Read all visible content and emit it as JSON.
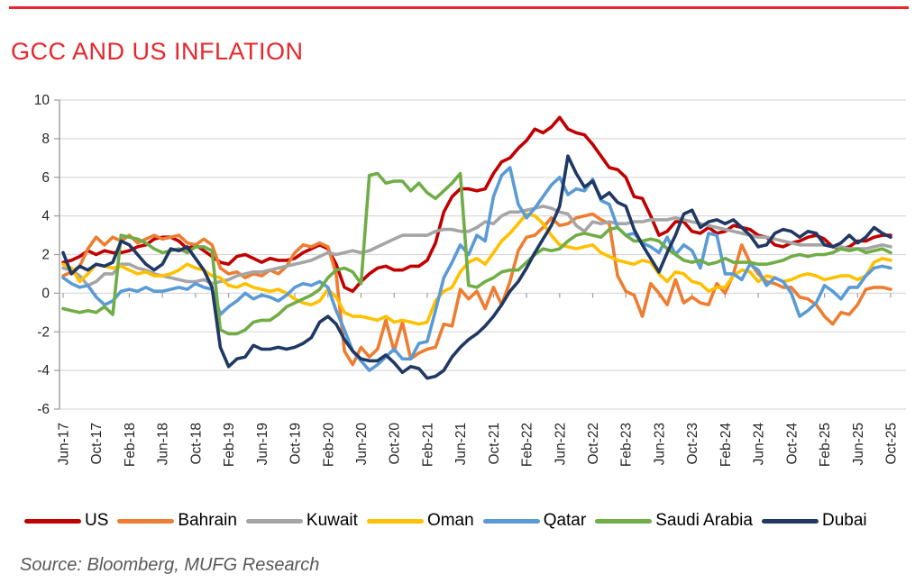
{
  "page": {
    "title": "GCC AND US INFLATION",
    "source": "Source: Bloomberg, MUFG Research",
    "accent_color": "#e8262d",
    "title_color": "#e8262d"
  },
  "chart_data": {
    "type": "line",
    "title": "GCC AND US INFLATION",
    "xlabel": "",
    "ylabel": "",
    "ylim": [
      -6,
      10
    ],
    "y_ticks": [
      10,
      8,
      6,
      4,
      2,
      0,
      -2,
      -4,
      -6
    ],
    "grid": true,
    "legend_position": "bottom",
    "x_frequency": "monthly",
    "x_start": "Jun-17",
    "x_end": "Oct-25",
    "x_tick_every": 4,
    "x_tick_labels": [
      "Jun-17",
      "Oct-17",
      "Feb-18",
      "Jun-18",
      "Oct-18",
      "Feb-19",
      "Jun-19",
      "Oct-19",
      "Feb-20",
      "Jun-20",
      "Oct-20",
      "Feb-21",
      "Jun-21",
      "Oct-21",
      "Feb-22",
      "Jun-22",
      "Oct-22",
      "Feb-23",
      "Jun-23",
      "Oct-23",
      "Feb-24",
      "Jun-24",
      "Oct-24",
      "Feb-25",
      "Jun-25",
      "Oct-25"
    ],
    "series": [
      {
        "name": "US",
        "color": "#c00000",
        "values": [
          1.6,
          1.7,
          1.9,
          2.2,
          2.0,
          2.2,
          2.1,
          2.1,
          2.2,
          2.4,
          2.5,
          2.8,
          2.9,
          2.9,
          2.7,
          2.3,
          2.5,
          2.2,
          1.9,
          1.6,
          1.5,
          1.9,
          2.0,
          1.8,
          1.6,
          1.8,
          1.7,
          1.7,
          1.8,
          2.1,
          2.3,
          2.5,
          2.3,
          1.5,
          0.3,
          0.1,
          0.6,
          1.0,
          1.3,
          1.4,
          1.2,
          1.2,
          1.4,
          1.4,
          1.7,
          2.6,
          4.2,
          5.0,
          5.4,
          5.4,
          5.3,
          5.4,
          6.2,
          6.8,
          7.0,
          7.5,
          7.9,
          8.5,
          8.3,
          8.6,
          9.1,
          8.5,
          8.3,
          8.2,
          7.7,
          7.1,
          6.5,
          6.4,
          6.0,
          5.0,
          4.9,
          4.0,
          3.0,
          3.2,
          3.7,
          3.7,
          3.2,
          3.1,
          3.4,
          3.1,
          3.2,
          3.5,
          3.4,
          3.3,
          3.0,
          2.9,
          2.5,
          2.4,
          2.6,
          2.7,
          2.9,
          3.0,
          2.8,
          2.4,
          2.3,
          2.4,
          2.7,
          2.7,
          2.9,
          3.0,
          3.0
        ]
      },
      {
        "name": "Bahrain",
        "color": "#ed7d31",
        "values": [
          0.9,
          1.1,
          1.4,
          2.3,
          2.9,
          2.5,
          2.9,
          2.7,
          3.0,
          2.6,
          2.8,
          3.0,
          2.8,
          2.9,
          3.0,
          2.6,
          2.5,
          2.8,
          2.5,
          1.3,
          1.0,
          1.1,
          0.8,
          1.0,
          0.9,
          1.2,
          1.0,
          1.4,
          2.1,
          2.5,
          2.4,
          2.6,
          2.4,
          1.0,
          -3.0,
          -3.7,
          -2.8,
          -3.3,
          -2.9,
          -1.4,
          -3.0,
          -1.5,
          -3.4,
          -3.1,
          -2.9,
          -2.8,
          -1.6,
          -1.7,
          0.2,
          -0.3,
          0.1,
          -0.8,
          0.3,
          -0.6,
          0.6,
          2.2,
          2.9,
          3.0,
          3.4,
          3.9,
          3.5,
          3.6,
          3.9,
          4.0,
          4.1,
          3.8,
          3.6,
          0.9,
          0.1,
          -0.1,
          -1.2,
          0.5,
          0.0,
          -0.6,
          0.7,
          -0.5,
          -0.2,
          -0.5,
          -0.6,
          0.5,
          0.0,
          1.0,
          2.5,
          1.6,
          1.0,
          0.6,
          0.5,
          0.3,
          0.3,
          -0.2,
          -0.3,
          -0.6,
          -1.2,
          -1.6,
          -1.0,
          -1.1,
          -0.6,
          0.2,
          0.3,
          0.3,
          0.2
        ]
      },
      {
        "name": "Kuwait",
        "color": "#a5a5a5",
        "values": [
          1.3,
          1.2,
          0.9,
          0.4,
          0.6,
          1.0,
          1.0,
          1.5,
          1.5,
          1.3,
          1.2,
          1.0,
          0.9,
          0.8,
          0.7,
          0.6,
          0.6,
          0.7,
          0.5,
          0.6,
          0.7,
          0.9,
          1.0,
          1.1,
          1.1,
          1.2,
          1.3,
          1.4,
          1.5,
          1.6,
          1.7,
          1.9,
          2.1,
          2.0,
          2.1,
          2.2,
          2.1,
          2.2,
          2.4,
          2.6,
          2.8,
          3.0,
          3.0,
          3.0,
          3.0,
          3.2,
          3.3,
          3.3,
          3.2,
          3.2,
          3.4,
          3.7,
          3.6,
          4.0,
          4.2,
          4.2,
          4.3,
          4.4,
          4.5,
          4.4,
          4.2,
          4.1,
          3.5,
          3.2,
          3.7,
          3.6,
          3.7,
          3.6,
          3.6,
          3.7,
          3.7,
          3.8,
          3.8,
          3.8,
          3.9,
          3.8,
          3.7,
          3.6,
          3.5,
          3.4,
          3.3,
          3.2,
          3.1,
          3.0,
          2.9,
          2.9,
          2.8,
          2.7,
          2.6,
          2.5,
          2.5,
          2.5,
          2.5,
          2.4,
          2.4,
          2.3,
          2.3,
          2.3,
          2.4,
          2.5,
          2.4
        ]
      },
      {
        "name": "Oman",
        "color": "#ffc000",
        "values": [
          1.5,
          1.3,
          0.6,
          1.0,
          1.5,
          1.4,
          1.3,
          1.4,
          1.2,
          1.0,
          1.1,
          0.9,
          0.9,
          1.0,
          1.2,
          1.5,
          1.3,
          1.2,
          0.9,
          0.8,
          0.4,
          0.3,
          0.5,
          0.3,
          0.2,
          0.1,
          0.2,
          0.0,
          -0.3,
          -0.5,
          -0.6,
          -0.4,
          0.2,
          -0.2,
          -1.0,
          -1.2,
          -1.2,
          -1.3,
          -1.4,
          -1.2,
          -1.5,
          -1.4,
          -1.5,
          -1.6,
          -1.5,
          -0.4,
          0.1,
          0.3,
          1.1,
          1.6,
          1.8,
          1.5,
          2.1,
          2.7,
          3.1,
          3.6,
          4.1,
          4.0,
          3.6,
          3.0,
          2.5,
          2.4,
          2.3,
          2.4,
          2.5,
          2.1,
          1.9,
          1.7,
          1.6,
          1.5,
          1.7,
          1.6,
          1.0,
          0.6,
          1.1,
          1.0,
          0.6,
          0.5,
          0.1,
          0.3,
          0.3,
          0.9,
          1.2,
          1.1,
          0.6,
          0.9,
          0.8,
          0.6,
          0.7,
          0.9,
          1.0,
          0.9,
          0.7,
          0.8,
          0.9,
          0.9,
          0.7,
          0.9,
          1.6,
          1.8,
          1.7
        ]
      },
      {
        "name": "Qatar",
        "color": "#5b9bd5",
        "values": [
          0.8,
          0.5,
          0.3,
          0.4,
          -0.2,
          -0.6,
          -0.4,
          0.1,
          0.2,
          0.1,
          0.3,
          0.1,
          0.1,
          0.2,
          0.3,
          0.2,
          0.5,
          0.3,
          0.2,
          -1.1,
          -0.7,
          -0.4,
          0.0,
          -0.3,
          -0.1,
          -0.2,
          -0.4,
          -0.1,
          0.3,
          0.5,
          0.4,
          0.6,
          0.3,
          -0.9,
          -1.9,
          -3.0,
          -3.5,
          -4.0,
          -3.7,
          -3.3,
          -2.9,
          -3.4,
          -3.4,
          -2.6,
          -2.5,
          -0.9,
          0.8,
          1.6,
          2.5,
          2.0,
          3.0,
          2.7,
          5.0,
          6.1,
          6.5,
          4.6,
          3.9,
          4.4,
          5.0,
          5.6,
          6.0,
          5.1,
          5.4,
          5.3,
          5.9,
          4.8,
          4.6,
          3.4,
          3.0,
          3.1,
          2.6,
          2.4,
          2.1,
          2.9,
          2.0,
          2.5,
          2.2,
          1.3,
          3.1,
          3.0,
          1.0,
          1.0,
          0.7,
          1.5,
          1.2,
          0.4,
          0.8,
          0.6,
          0.0,
          -1.2,
          -0.9,
          -0.5,
          0.4,
          0.1,
          -0.3,
          0.3,
          0.3,
          0.9,
          1.3,
          1.4,
          1.3
        ]
      },
      {
        "name": "Saudi Arabia",
        "color": "#70ad47",
        "values": [
          -0.8,
          -0.9,
          -1.0,
          -0.9,
          -1.0,
          -0.7,
          -1.1,
          3.0,
          2.9,
          2.8,
          2.6,
          2.3,
          2.1,
          2.2,
          2.3,
          2.1,
          2.4,
          2.4,
          2.2,
          -1.9,
          -2.1,
          -2.1,
          -1.9,
          -1.5,
          -1.4,
          -1.4,
          -1.1,
          -0.7,
          -0.5,
          -0.3,
          -0.1,
          0.2,
          0.8,
          1.2,
          1.3,
          1.1,
          0.5,
          6.1,
          6.2,
          5.7,
          5.8,
          5.8,
          5.3,
          5.7,
          5.2,
          4.9,
          5.3,
          5.7,
          6.2,
          0.4,
          0.3,
          0.6,
          0.8,
          1.1,
          1.2,
          1.2,
          1.6,
          2.0,
          2.3,
          2.2,
          2.3,
          2.7,
          3.0,
          3.1,
          3.0,
          2.9,
          3.3,
          3.4,
          3.0,
          2.7,
          2.7,
          2.8,
          2.7,
          2.3,
          2.0,
          1.7,
          1.6,
          1.7,
          1.5,
          1.6,
          1.8,
          1.6,
          1.6,
          1.6,
          1.5,
          1.5,
          1.6,
          1.7,
          1.9,
          2.0,
          1.9,
          2.0,
          2.0,
          2.1,
          2.3,
          2.2,
          2.3,
          2.1,
          2.2,
          2.3,
          2.1
        ]
      },
      {
        "name": "Dubai",
        "color": "#1f3864",
        "values": [
          2.1,
          1.0,
          1.4,
          1.2,
          1.5,
          1.4,
          1.6,
          2.7,
          2.5,
          2.0,
          1.5,
          1.2,
          1.5,
          2.3,
          2.2,
          2.4,
          1.8,
          1.2,
          0.3,
          -2.8,
          -3.8,
          -3.4,
          -3.3,
          -2.7,
          -2.9,
          -2.9,
          -2.8,
          -2.9,
          -2.8,
          -2.6,
          -2.3,
          -1.5,
          -1.2,
          -1.6,
          -2.4,
          -3.0,
          -3.4,
          -3.5,
          -3.5,
          -3.2,
          -3.6,
          -4.1,
          -3.8,
          -3.9,
          -4.4,
          -4.3,
          -4.0,
          -3.3,
          -2.8,
          -2.4,
          -2.1,
          -1.7,
          -1.2,
          -0.6,
          0.1,
          0.6,
          1.3,
          2.1,
          2.8,
          3.5,
          4.5,
          7.1,
          6.2,
          5.5,
          5.8,
          4.9,
          5.2,
          4.7,
          4.5,
          3.3,
          2.5,
          1.8,
          1.1,
          2.1,
          3.0,
          4.1,
          4.3,
          3.4,
          3.7,
          3.8,
          3.6,
          3.8,
          3.4,
          3.0,
          2.4,
          2.5,
          3.1,
          3.3,
          3.2,
          2.9,
          3.2,
          3.1,
          2.5,
          2.4,
          2.6,
          3.0,
          2.6,
          2.9,
          3.4,
          3.1,
          2.9
        ]
      }
    ]
  }
}
